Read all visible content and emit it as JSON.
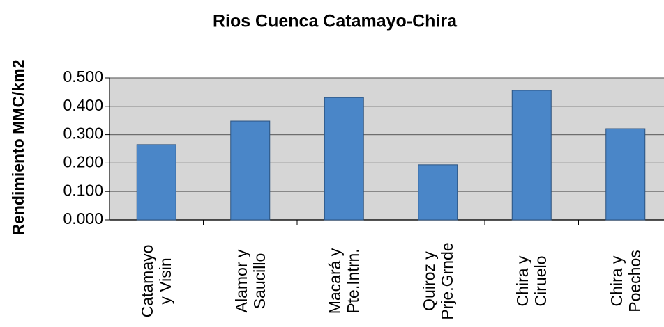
{
  "chart_data": {
    "type": "bar",
    "title": "Rios Cuenca Catamayo-Chira",
    "y_label": "Rendimiento MMC/km2",
    "categories": [
      "Catamayo\ny Visin",
      "Alamor y\nSaucillo",
      "Macará y\nPte.Intrn.",
      "Quiroz y\nPrje.Grnde",
      "Chira y\nCiruelo",
      "Chira y\nPoechos"
    ],
    "values": [
      0.265,
      0.348,
      0.431,
      0.194,
      0.456,
      0.321
    ],
    "color": "#4a86c8",
    "ylim": [
      0,
      0.5
    ],
    "yticks": [
      {
        "value": 0,
        "label": "0.000"
      },
      {
        "value": 0.1,
        "label": "0.100"
      },
      {
        "value": 0.2,
        "label": "0.200"
      },
      {
        "value": 0.3,
        "label": "0.300"
      },
      {
        "value": 0.4,
        "label": "0.400"
      },
      {
        "value": 0.5,
        "label": "0.500"
      }
    ],
    "grid": true
  }
}
